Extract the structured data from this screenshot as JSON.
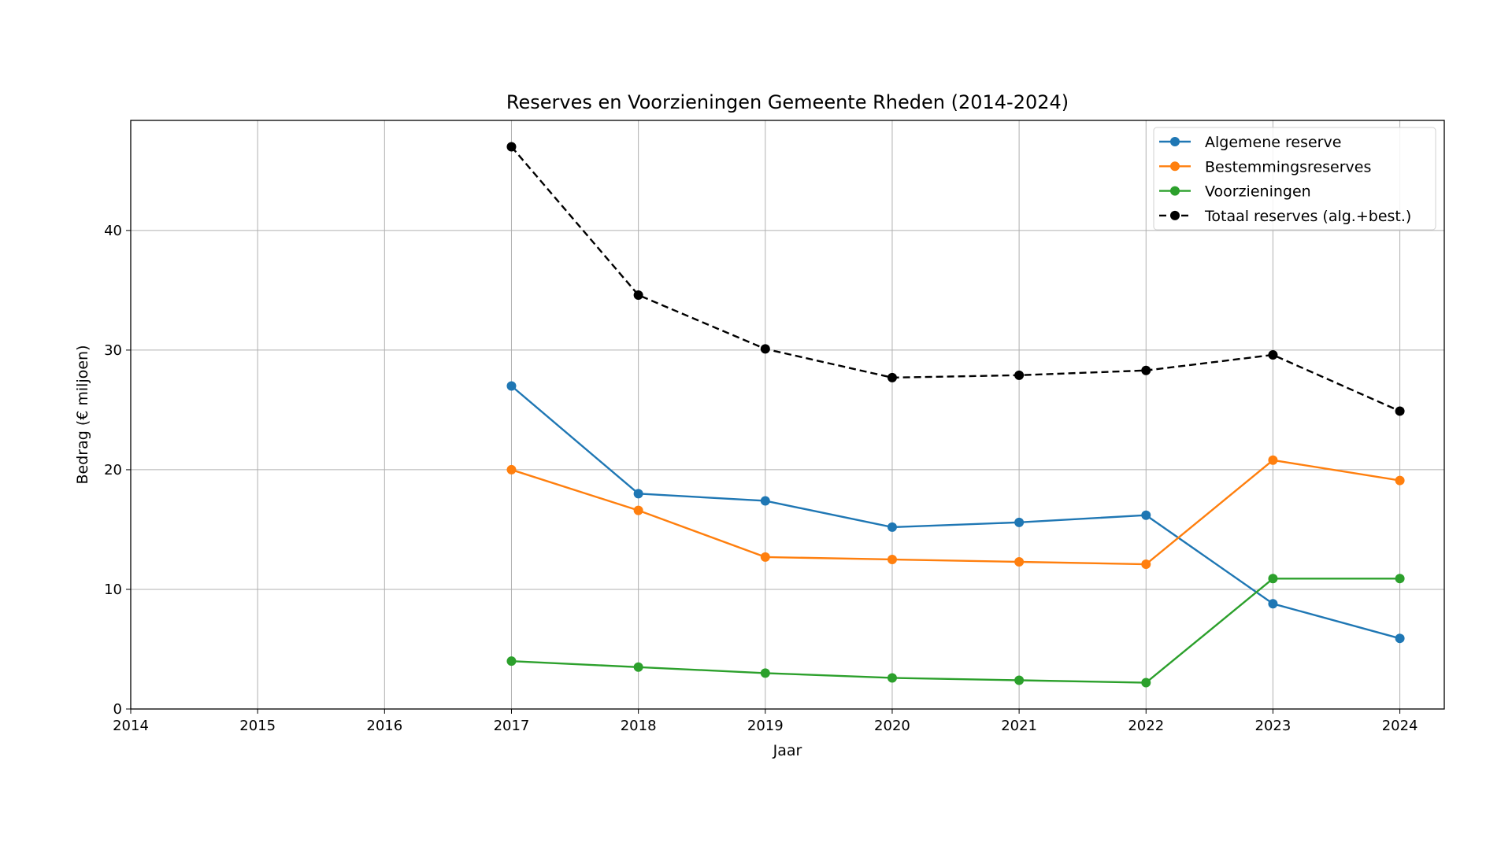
{
  "chart_data": {
    "type": "line",
    "title": "Reserves en Voorzieningen Gemeente Rheden (2014-2024)",
    "xlabel": "Jaar",
    "ylabel": "Bedrag (€ miljoen)",
    "xlim": [
      2014,
      2024.35
    ],
    "ylim": [
      0,
      49.2
    ],
    "xticks": [
      2014,
      2015,
      2016,
      2017,
      2018,
      2019,
      2020,
      2021,
      2022,
      2023,
      2024
    ],
    "yticks": [
      0,
      10,
      20,
      30,
      40
    ],
    "grid": true,
    "legend_position": "top-right",
    "x": [
      2017,
      2018,
      2019,
      2020,
      2021,
      2022,
      2023,
      2024
    ],
    "series": [
      {
        "name": "Algemene reserve",
        "color": "#1f77b4",
        "dashed": false,
        "values": [
          27.0,
          18.0,
          17.4,
          15.2,
          15.6,
          16.2,
          8.8,
          5.9
        ]
      },
      {
        "name": "Bestemmingsreserves",
        "color": "#ff7f0e",
        "dashed": false,
        "values": [
          20.0,
          16.6,
          12.7,
          12.5,
          12.3,
          12.1,
          20.8,
          19.1
        ]
      },
      {
        "name": "Voorzieningen",
        "color": "#2ca02c",
        "dashed": false,
        "values": [
          4.0,
          3.5,
          3.0,
          2.6,
          2.4,
          2.2,
          10.9,
          10.9
        ]
      },
      {
        "name": "Totaal reserves (alg.+best.)",
        "color": "#000000",
        "dashed": true,
        "values": [
          47.0,
          34.6,
          30.1,
          27.7,
          27.9,
          28.3,
          29.6,
          24.9
        ]
      }
    ]
  }
}
